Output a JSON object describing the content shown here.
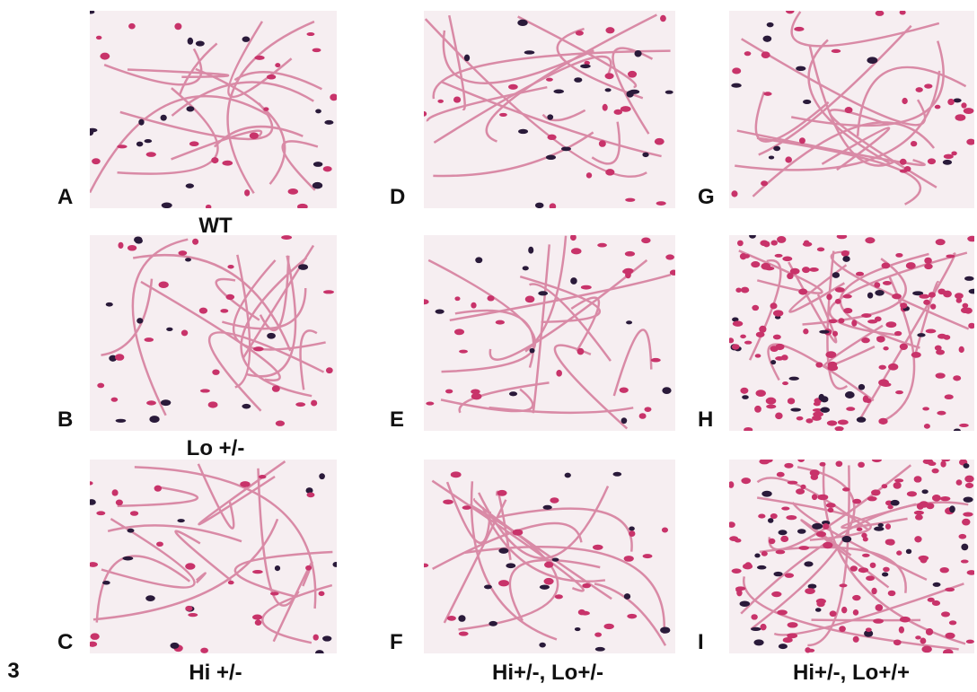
{
  "figure_number": "3",
  "panels": [
    {
      "letter": "A"
    },
    {
      "letter": "B"
    },
    {
      "letter": "C"
    },
    {
      "letter": "D"
    },
    {
      "letter": "E"
    },
    {
      "letter": "F"
    },
    {
      "letter": "G"
    },
    {
      "letter": "H"
    },
    {
      "letter": "I"
    }
  ],
  "labels": [
    "WT",
    "Lo +/-",
    "Hi +/-",
    "Hi+/-, Lo+/-",
    "Hi+/-, Lo+/+"
  ]
}
